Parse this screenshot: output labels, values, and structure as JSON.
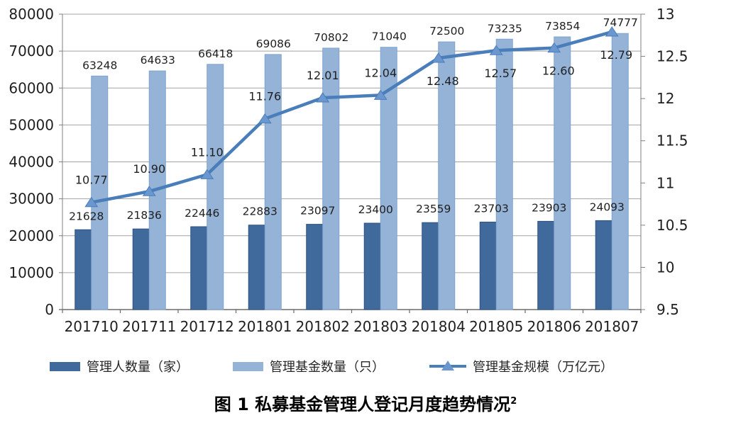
{
  "chart_data": {
    "type": "bar",
    "subtype": "combo-bar-line-dual-axis",
    "categories": [
      "201710",
      "201711",
      "201712",
      "201801",
      "201802",
      "201803",
      "201804",
      "201805",
      "201806",
      "201807"
    ],
    "series": [
      {
        "name": "管理人数量（家）",
        "kind": "bar",
        "axis": "left",
        "color": "#40699C",
        "border_color": "#2F5380",
        "values": [
          21628,
          21836,
          22446,
          22883,
          23097,
          23400,
          23559,
          23703,
          23903,
          24093
        ]
      },
      {
        "name": "管理基金数量（只）",
        "kind": "bar",
        "axis": "left",
        "color": "#95B3D7",
        "border_color": "#7FA3CF",
        "values": [
          63248,
          64633,
          66418,
          69086,
          70802,
          71040,
          72500,
          73235,
          73854,
          74777
        ]
      },
      {
        "name": "管理基金规模（万亿元）",
        "kind": "line",
        "axis": "right",
        "color": "#4A7EBB",
        "marker": "triangle-up",
        "marker_fill": "#6B97CF",
        "values": [
          10.77,
          10.9,
          11.1,
          11.76,
          12.01,
          12.04,
          12.48,
          12.57,
          12.6,
          12.79
        ],
        "value_labels": [
          "10.77",
          "10.90",
          "11.10",
          "11.76",
          "12.01",
          "12.04",
          "12.48",
          "12.57",
          "12.60",
          "12.79"
        ],
        "label_positions": [
          "above",
          "above",
          "above",
          "above",
          "above",
          "above",
          "below",
          "below",
          "below",
          "below"
        ]
      }
    ],
    "left_axis": {
      "min": 0,
      "max": 80000,
      "tick_step": 10000,
      "tick_labels": [
        "0",
        "10000",
        "20000",
        "30000",
        "40000",
        "50000",
        "60000",
        "70000",
        "80000"
      ]
    },
    "right_axis": {
      "min": 9.5,
      "max": 13,
      "tick_step": 0.5,
      "tick_labels": [
        "9.5",
        "10",
        "10.5",
        "11",
        "11.5",
        "12",
        "12.5",
        "13"
      ]
    },
    "grid": "horizontal",
    "legend_position": "bottom",
    "title": "图 1 私募基金管理人登记月度趋势情况"
  },
  "legend": {
    "items": [
      {
        "label": "管理人数量（家）",
        "marker": "bar-swatch-dark"
      },
      {
        "label": "管理基金数量（只）",
        "marker": "bar-swatch-light"
      },
      {
        "label": "管理基金规模（万亿元）",
        "marker": "line-triangle"
      }
    ]
  },
  "title": {
    "text": "图 1 私募基金管理人登记月度趋势情况",
    "footnote_mark": "2"
  }
}
